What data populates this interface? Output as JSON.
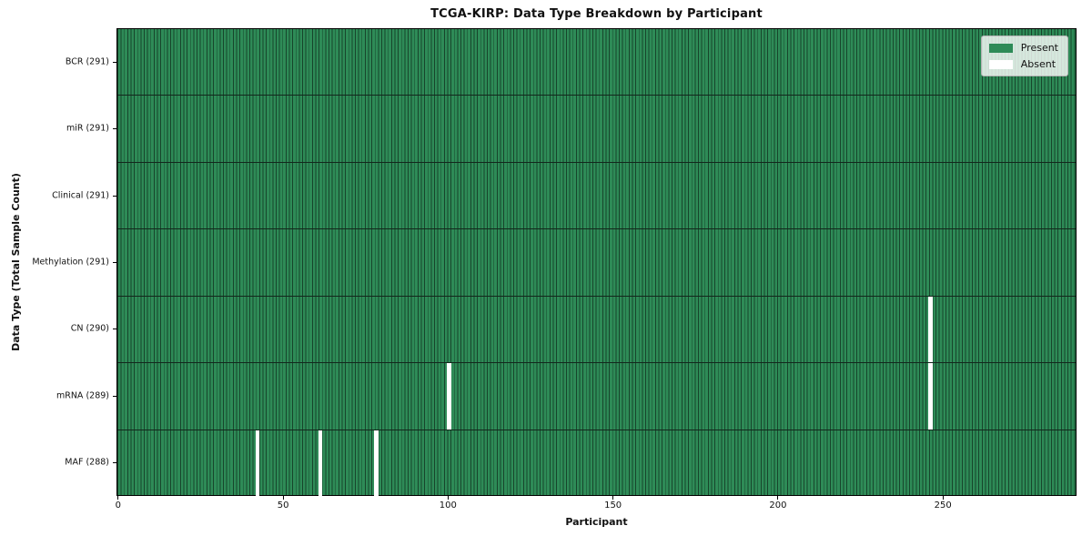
{
  "chart_data": {
    "type": "heatmap",
    "title": "TCGA-KIRP: Data Type Breakdown by Participant",
    "xlabel": "Participant",
    "ylabel": "Data Type (Total Sample Count)",
    "n_participants": 291,
    "xlim": [
      0,
      291
    ],
    "x_ticks": [
      "0",
      "50",
      "100",
      "150",
      "200",
      "250"
    ],
    "x_tick_values": [
      0,
      50,
      100,
      150,
      200,
      250
    ],
    "grid": "row-boundaries",
    "legend": {
      "position": "upper right",
      "entries": [
        {
          "label": "Present",
          "color": "#2e8b57",
          "key": "present"
        },
        {
          "label": "Absent",
          "color": "#ffffff",
          "key": "absent"
        }
      ]
    },
    "rows": [
      {
        "data_type": "BCR",
        "label": "BCR (291)",
        "present_count": 291,
        "absent_participants": []
      },
      {
        "data_type": "miR",
        "label": "miR (291)",
        "present_count": 291,
        "absent_participants": []
      },
      {
        "data_type": "Clinical",
        "label": "Clinical (291)",
        "present_count": 291,
        "absent_participants": []
      },
      {
        "data_type": "Methylation",
        "label": "Methylation (291)",
        "present_count": 291,
        "absent_participants": []
      },
      {
        "data_type": "CN",
        "label": "CN (290)",
        "present_count": 290,
        "absent_participants": [
          246
        ]
      },
      {
        "data_type": "mRNA",
        "label": "mRNA (289)",
        "present_count": 289,
        "absent_participants": [
          100,
          246
        ]
      },
      {
        "data_type": "MAF",
        "label": "MAF (288)",
        "present_count": 288,
        "absent_participants": [
          42,
          61,
          78
        ]
      }
    ],
    "colors": {
      "present": "#2e8b57",
      "absent": "#ffffff",
      "bar_edge": "rgba(0,0,0,0.5)",
      "row_boundary": "#13271c",
      "spine": "#000000"
    }
  }
}
